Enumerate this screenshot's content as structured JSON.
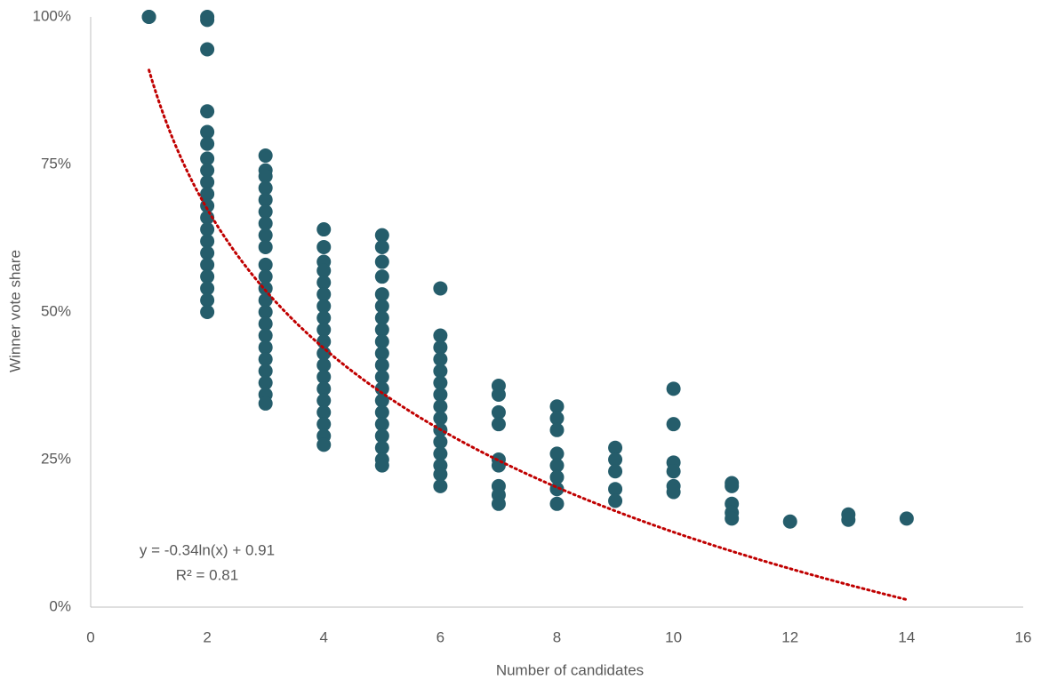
{
  "chart_data": {
    "type": "scatter",
    "x_label": "Number of candidates",
    "y_label": "Winner vote share",
    "xlim": [
      0,
      16
    ],
    "xticks": [
      0,
      2,
      4,
      6,
      8,
      10,
      12,
      14,
      16
    ],
    "ylim": [
      0,
      1
    ],
    "yticks": [
      {
        "value": 0,
        "label": "0%"
      },
      {
        "value": 0.25,
        "label": "25%"
      },
      {
        "value": 0.5,
        "label": "50%"
      },
      {
        "value": 0.75,
        "label": "75%"
      },
      {
        "value": 1,
        "label": "100%"
      }
    ],
    "grid": false,
    "color": "#255d6b",
    "x": [
      1,
      1,
      2,
      2,
      2,
      2,
      2,
      2,
      2,
      2,
      2,
      2,
      2,
      2,
      2,
      2,
      2,
      2,
      2,
      2,
      2,
      2,
      3,
      3,
      3,
      3,
      3,
      3,
      3,
      3,
      3,
      3,
      3,
      3,
      3,
      3,
      3,
      3,
      3,
      3,
      3,
      3,
      3,
      3,
      4,
      4,
      4,
      4,
      4,
      4,
      4,
      4,
      4,
      4,
      4,
      4,
      4,
      4,
      4,
      4,
      4,
      4,
      4,
      5,
      5,
      5,
      5,
      5,
      5,
      5,
      5,
      5,
      5,
      5,
      5,
      5,
      5,
      5,
      5,
      5,
      5,
      5,
      5,
      6,
      6,
      6,
      6,
      6,
      6,
      6,
      6,
      6,
      6,
      6,
      6,
      6,
      6,
      6,
      7,
      7,
      7,
      7,
      7,
      7,
      7,
      7,
      7,
      8,
      8,
      8,
      8,
      8,
      8,
      8,
      8,
      9,
      9,
      9,
      9,
      9,
      10,
      10,
      10,
      10,
      10,
      10,
      11,
      11,
      11,
      11,
      11,
      12,
      13,
      13,
      14
    ],
    "values": [
      1.0,
      1.0,
      1.0,
      0.995,
      0.945,
      0.84,
      0.805,
      0.785,
      0.76,
      0.74,
      0.72,
      0.7,
      0.68,
      0.66,
      0.64,
      0.62,
      0.6,
      0.58,
      0.56,
      0.54,
      0.52,
      0.5,
      0.765,
      0.74,
      0.73,
      0.71,
      0.69,
      0.67,
      0.65,
      0.63,
      0.61,
      0.58,
      0.56,
      0.54,
      0.52,
      0.5,
      0.48,
      0.46,
      0.44,
      0.42,
      0.4,
      0.38,
      0.36,
      0.345,
      0.64,
      0.61,
      0.585,
      0.57,
      0.55,
      0.53,
      0.51,
      0.49,
      0.47,
      0.45,
      0.43,
      0.41,
      0.39,
      0.37,
      0.35,
      0.33,
      0.31,
      0.29,
      0.275,
      0.63,
      0.61,
      0.585,
      0.56,
      0.53,
      0.51,
      0.49,
      0.47,
      0.45,
      0.43,
      0.41,
      0.39,
      0.37,
      0.35,
      0.33,
      0.31,
      0.29,
      0.27,
      0.25,
      0.24,
      0.54,
      0.46,
      0.44,
      0.42,
      0.4,
      0.38,
      0.36,
      0.34,
      0.32,
      0.3,
      0.28,
      0.26,
      0.24,
      0.225,
      0.205,
      0.375,
      0.36,
      0.33,
      0.31,
      0.25,
      0.24,
      0.205,
      0.19,
      0.175,
      0.34,
      0.32,
      0.3,
      0.26,
      0.24,
      0.22,
      0.2,
      0.175,
      0.27,
      0.25,
      0.23,
      0.2,
      0.18,
      0.37,
      0.31,
      0.245,
      0.23,
      0.205,
      0.195,
      0.21,
      0.205,
      0.175,
      0.16,
      0.15,
      0.145,
      0.157,
      0.148,
      0.15
    ],
    "trendline": {
      "equation": "y = -0.34ln(x) + 0.91",
      "r_squared": "R² = 0.81",
      "slope": -0.34,
      "intercept": 0.91,
      "x_start": 1,
      "x_end": 14,
      "color": "#c00000"
    }
  }
}
